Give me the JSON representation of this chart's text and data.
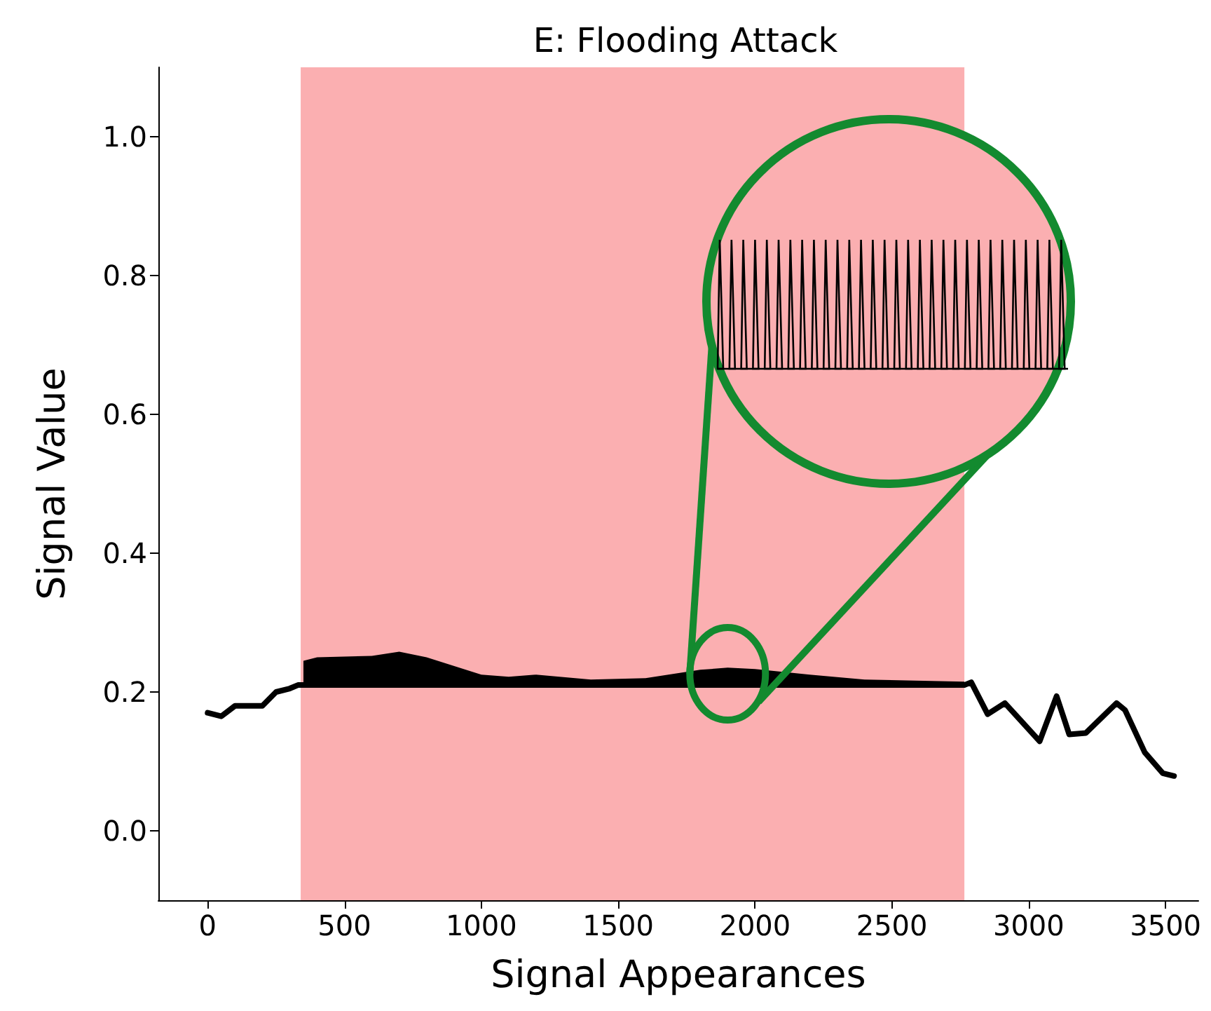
{
  "chart_data": {
    "type": "line",
    "title": "E: Flooding Attack",
    "xlabel": "Signal Appearances",
    "ylabel": "Signal Value",
    "xlim": [
      -180,
      3620
    ],
    "ylim": [
      -0.1,
      1.1
    ],
    "xticks": [
      0,
      500,
      1000,
      1500,
      2000,
      2500,
      3000,
      3500
    ],
    "yticks": [
      {
        "value": 0,
        "label": "0.0"
      },
      {
        "value": 0.2,
        "label": "0.2"
      },
      {
        "value": 0.4,
        "label": "0.4"
      },
      {
        "value": 0.6,
        "label": "0.6"
      },
      {
        "value": 0.8,
        "label": "0.8"
      },
      {
        "value": 1,
        "label": "1.0"
      }
    ],
    "grid": false,
    "marker": "none",
    "line_style": "solid",
    "bands": [
      {
        "axis": "x",
        "from": 340,
        "to": 2765,
        "color": "#fbafb1"
      }
    ],
    "series": [
      {
        "color": "#000000",
        "x": [
          0,
          50,
          100,
          200,
          250,
          300,
          330,
          350,
          400,
          600,
          700,
          800,
          1000,
          1100,
          1200,
          1400,
          1600,
          1800,
          1900,
          2000,
          2200,
          2400,
          2765,
          2790,
          2850,
          2913,
          3040,
          3102,
          3148,
          3209,
          3321,
          3352,
          3424,
          3490,
          3531
        ],
        "values": [
          0.17,
          0.165,
          0.18,
          0.18,
          0.2,
          0.205,
          0.21,
          0.21,
          0.21,
          0.21,
          0.21,
          0.21,
          0.21,
          0.21,
          0.21,
          0.21,
          0.21,
          0.21,
          0.21,
          0.21,
          0.21,
          0.21,
          0.21,
          0.214,
          0.168,
          0.184,
          0.129,
          0.194,
          0.139,
          0.141,
          0.184,
          0.174,
          0.113,
          0.083,
          0.079
        ],
        "lower": [
          null,
          null,
          null,
          null,
          null,
          null,
          null,
          0.21,
          0.21,
          0.21,
          0.21,
          0.21,
          0.21,
          0.21,
          0.21,
          0.21,
          0.21,
          0.21,
          0.21,
          0.21,
          0.21,
          0.21,
          0.21,
          null,
          null,
          null,
          null,
          null,
          null,
          null,
          null,
          null,
          null,
          null,
          null
        ],
        "upper": [
          null,
          null,
          null,
          null,
          null,
          null,
          null,
          0.245,
          0.25,
          0.252,
          0.258,
          0.25,
          0.225,
          0.222,
          0.225,
          0.218,
          0.22,
          0.232,
          0.235,
          0.233,
          0.225,
          0.218,
          0.215,
          null,
          null,
          null,
          null,
          null,
          null,
          null,
          null,
          null,
          null,
          null,
          null
        ]
      }
    ]
  }
}
